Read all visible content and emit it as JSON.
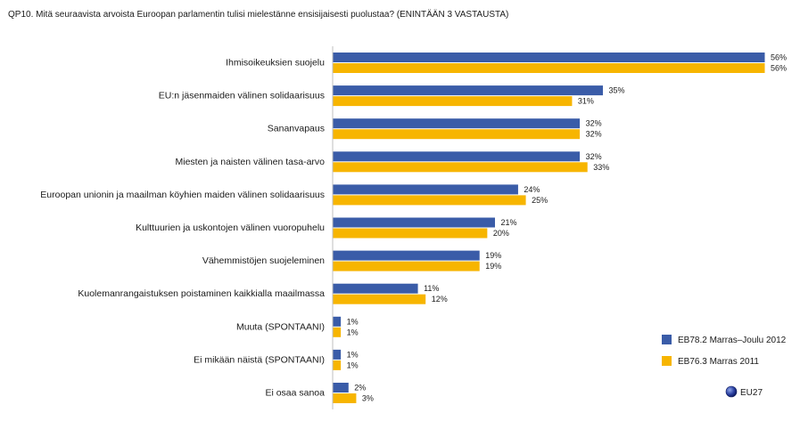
{
  "chart_data": {
    "type": "bar",
    "orientation": "horizontal",
    "title": "QP10. Mitä seuraavista arvoista Euroopan parlamentin tulisi mielestänne ensisijaisesti puolustaa? (ENINTÄÄN 3 VASTAUSTA)",
    "categories": [
      "Ihmisoikeuksien suojelu",
      "EU:n jäsenmaiden välinen solidaarisuus",
      "Sananvapaus",
      "Miesten ja naisten välinen tasa-arvo",
      "Euroopan unionin ja maailman köyhien maiden välinen solidaarisuus",
      "Kulttuurien ja uskontojen välinen vuoropuhelu",
      "Vähemmistöjen suojeleminen",
      "Kuolemanrangaistuksen poistaminen kaikkialla maailmassa",
      "Muuta (SPONTAANI)",
      "Ei mikään näistä (SPONTAANI)",
      "Ei osaa sanoa"
    ],
    "series": [
      {
        "name": "EB78.2 Marras–Joulu 2012",
        "color": "#3a5ca8",
        "values": [
          56,
          35,
          32,
          32,
          24,
          21,
          19,
          11,
          1,
          1,
          2
        ]
      },
      {
        "name": "EB76.3 Marras 2011",
        "color": "#f7b500",
        "values": [
          56,
          31,
          32,
          33,
          25,
          20,
          19,
          12,
          1,
          1,
          3
        ]
      }
    ],
    "value_suffix": "%",
    "xlim": [
      0,
      56
    ],
    "legend_position": "bottom-right",
    "region_label": "EU27",
    "grid": false
  }
}
